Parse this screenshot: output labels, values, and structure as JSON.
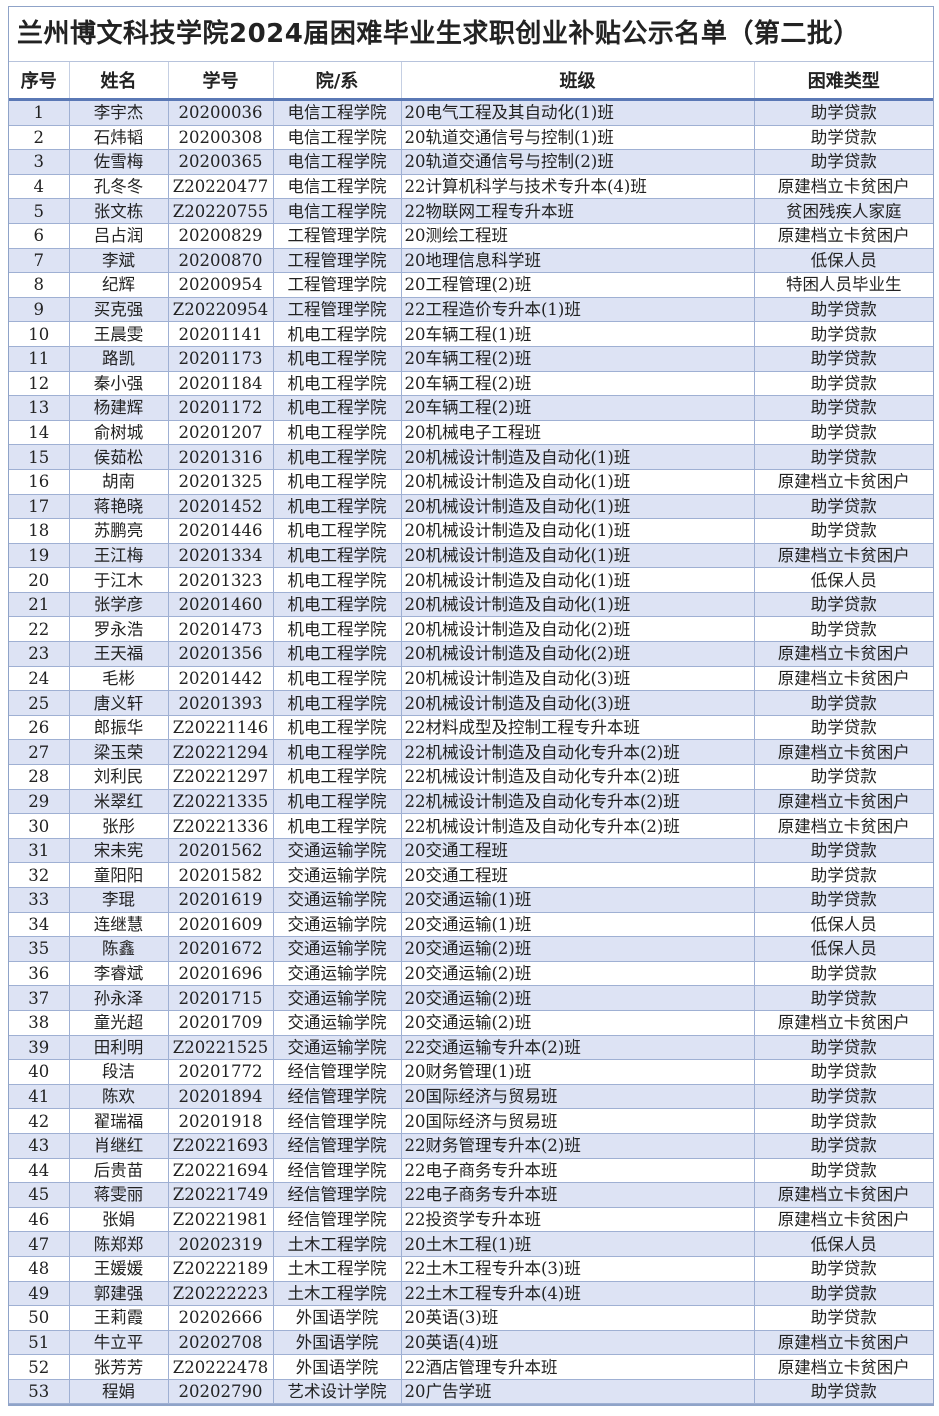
{
  "title": "兰州博文科技学院2024届困难毕业生求职创业补贴公示名单（第二批）",
  "headers": [
    "序号",
    "姓名",
    "学号",
    "院/系",
    "班级",
    "困难类型"
  ],
  "colors": {
    "odd_row": "#dde3f4",
    "border": "#9fb0d3",
    "header_rule": "#5a78b5"
  },
  "rows": [
    [
      "1",
      "李宇杰",
      "20200036",
      "电信工程学院",
      "20电气工程及其自动化(1)班",
      "助学贷款"
    ],
    [
      "2",
      "石炜韬",
      "20200308",
      "电信工程学院",
      "20轨道交通信号与控制(1)班",
      "助学贷款"
    ],
    [
      "3",
      "佐雪梅",
      "20200365",
      "电信工程学院",
      "20轨道交通信号与控制(2)班",
      "助学贷款"
    ],
    [
      "4",
      "孔冬冬",
      "Z20220477",
      "电信工程学院",
      "22计算机科学与技术专升本(4)班",
      "原建档立卡贫困户"
    ],
    [
      "5",
      "张文栋",
      "Z20220755",
      "电信工程学院",
      "22物联网工程专升本班",
      "贫困残疾人家庭"
    ],
    [
      "6",
      "吕占润",
      "20200829",
      "工程管理学院",
      "20测绘工程班",
      "原建档立卡贫困户"
    ],
    [
      "7",
      "李斌",
      "20200870",
      "工程管理学院",
      "20地理信息科学班",
      "低保人员"
    ],
    [
      "8",
      "纪辉",
      "20200954",
      "工程管理学院",
      "20工程管理(2)班",
      "特困人员毕业生"
    ],
    [
      "9",
      "买克强",
      "Z20220954",
      "工程管理学院",
      "22工程造价专升本(1)班",
      "助学贷款"
    ],
    [
      "10",
      "王晨雯",
      "20201141",
      "机电工程学院",
      "20车辆工程(1)班",
      "助学贷款"
    ],
    [
      "11",
      "路凯",
      "20201173",
      "机电工程学院",
      "20车辆工程(2)班",
      "助学贷款"
    ],
    [
      "12",
      "秦小强",
      "20201184",
      "机电工程学院",
      "20车辆工程(2)班",
      "助学贷款"
    ],
    [
      "13",
      "杨建辉",
      "20201172",
      "机电工程学院",
      "20车辆工程(2)班",
      "助学贷款"
    ],
    [
      "14",
      "俞树城",
      "20201207",
      "机电工程学院",
      "20机械电子工程班",
      "助学贷款"
    ],
    [
      "15",
      "侯茹松",
      "20201316",
      "机电工程学院",
      "20机械设计制造及自动化(1)班",
      "助学贷款"
    ],
    [
      "16",
      "胡南",
      "20201325",
      "机电工程学院",
      "20机械设计制造及自动化(1)班",
      "原建档立卡贫困户"
    ],
    [
      "17",
      "蒋艳晓",
      "20201452",
      "机电工程学院",
      "20机械设计制造及自动化(1)班",
      "助学贷款"
    ],
    [
      "18",
      "苏鹏亮",
      "20201446",
      "机电工程学院",
      "20机械设计制造及自动化(1)班",
      "助学贷款"
    ],
    [
      "19",
      "王江梅",
      "20201334",
      "机电工程学院",
      "20机械设计制造及自动化(1)班",
      "原建档立卡贫困户"
    ],
    [
      "20",
      "于江木",
      "20201323",
      "机电工程学院",
      "20机械设计制造及自动化(1)班",
      "低保人员"
    ],
    [
      "21",
      "张学彦",
      "20201460",
      "机电工程学院",
      "20机械设计制造及自动化(1)班",
      "助学贷款"
    ],
    [
      "22",
      "罗永浩",
      "20201473",
      "机电工程学院",
      "20机械设计制造及自动化(2)班",
      "助学贷款"
    ],
    [
      "23",
      "王天福",
      "20201356",
      "机电工程学院",
      "20机械设计制造及自动化(2)班",
      "原建档立卡贫困户"
    ],
    [
      "24",
      "毛彬",
      "20201442",
      "机电工程学院",
      "20机械设计制造及自动化(3)班",
      "原建档立卡贫困户"
    ],
    [
      "25",
      "唐义轩",
      "20201393",
      "机电工程学院",
      "20机械设计制造及自动化(3)班",
      "助学贷款"
    ],
    [
      "26",
      "郎振华",
      "Z20221146",
      "机电工程学院",
      "22材料成型及控制工程专升本班",
      "助学贷款"
    ],
    [
      "27",
      "梁玉荣",
      "Z20221294",
      "机电工程学院",
      "22机械设计制造及自动化专升本(2)班",
      "原建档立卡贫困户"
    ],
    [
      "28",
      "刘利民",
      "Z20221297",
      "机电工程学院",
      "22机械设计制造及自动化专升本(2)班",
      "助学贷款"
    ],
    [
      "29",
      "米翠红",
      "Z20221335",
      "机电工程学院",
      "22机械设计制造及自动化专升本(2)班",
      "原建档立卡贫困户"
    ],
    [
      "30",
      "张彤",
      "Z20221336",
      "机电工程学院",
      "22机械设计制造及自动化专升本(2)班",
      "原建档立卡贫困户"
    ],
    [
      "31",
      "宋未宪",
      "20201562",
      "交通运输学院",
      "20交通工程班",
      "助学贷款"
    ],
    [
      "32",
      "童阳阳",
      "20201582",
      "交通运输学院",
      "20交通工程班",
      "助学贷款"
    ],
    [
      "33",
      "李琨",
      "20201619",
      "交通运输学院",
      "20交通运输(1)班",
      "助学贷款"
    ],
    [
      "34",
      "连继慧",
      "20201609",
      "交通运输学院",
      "20交通运输(1)班",
      "低保人员"
    ],
    [
      "35",
      "陈鑫",
      "20201672",
      "交通运输学院",
      "20交通运输(2)班",
      "低保人员"
    ],
    [
      "36",
      "李睿斌",
      "20201696",
      "交通运输学院",
      "20交通运输(2)班",
      "助学贷款"
    ],
    [
      "37",
      "孙永泽",
      "20201715",
      "交通运输学院",
      "20交通运输(2)班",
      "助学贷款"
    ],
    [
      "38",
      "童光超",
      "20201709",
      "交通运输学院",
      "20交通运输(2)班",
      "原建档立卡贫困户"
    ],
    [
      "39",
      "田利明",
      "Z20221525",
      "交通运输学院",
      "22交通运输专升本(2)班",
      "助学贷款"
    ],
    [
      "40",
      "段洁",
      "20201772",
      "经信管理学院",
      "20财务管理(1)班",
      "助学贷款"
    ],
    [
      "41",
      "陈欢",
      "20201894",
      "经信管理学院",
      "20国际经济与贸易班",
      "助学贷款"
    ],
    [
      "42",
      "翟瑞福",
      "20201918",
      "经信管理学院",
      "20国际经济与贸易班",
      "助学贷款"
    ],
    [
      "43",
      "肖继红",
      "Z20221693",
      "经信管理学院",
      "22财务管理专升本(2)班",
      "助学贷款"
    ],
    [
      "44",
      "后贵苗",
      "Z20221694",
      "经信管理学院",
      "22电子商务专升本班",
      "助学贷款"
    ],
    [
      "45",
      "蒋雯丽",
      "Z20221749",
      "经信管理学院",
      "22电子商务专升本班",
      "原建档立卡贫困户"
    ],
    [
      "46",
      "张娟",
      "Z20221981",
      "经信管理学院",
      "22投资学专升本班",
      "原建档立卡贫困户"
    ],
    [
      "47",
      "陈郑郑",
      "20202319",
      "土木工程学院",
      "20土木工程(1)班",
      "低保人员"
    ],
    [
      "48",
      "王媛媛",
      "Z20222189",
      "土木工程学院",
      "22土木工程专升本(3)班",
      "助学贷款"
    ],
    [
      "49",
      "郭建强",
      "Z20222223",
      "土木工程学院",
      "22土木工程专升本(4)班",
      "助学贷款"
    ],
    [
      "50",
      "王莉霞",
      "20202666",
      "外国语学院",
      "20英语(3)班",
      "助学贷款"
    ],
    [
      "51",
      "牛立平",
      "20202708",
      "外国语学院",
      "20英语(4)班",
      "原建档立卡贫困户"
    ],
    [
      "52",
      "张芳芳",
      "Z20222478",
      "外国语学院",
      "22酒店管理专升本班",
      "原建档立卡贫困户"
    ],
    [
      "53",
      "程娟",
      "20202790",
      "艺术设计学院",
      "20广告学班",
      "助学贷款"
    ]
  ]
}
